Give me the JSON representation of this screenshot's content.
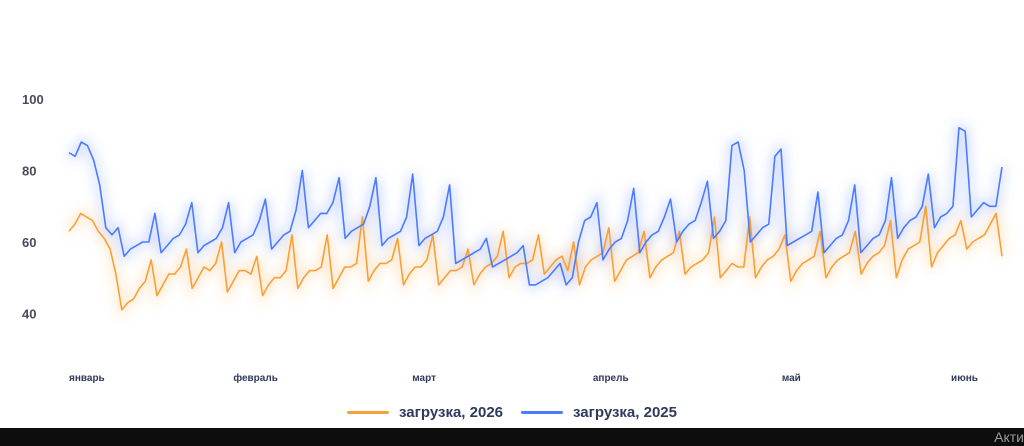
{
  "chart_data": {
    "type": "line",
    "y_ticks": [
      40,
      60,
      80,
      100
    ],
    "ylim": [
      32,
      102
    ],
    "x_month_labels": [
      "январь",
      "февраль",
      "март",
      "апрель",
      "май",
      "июнь"
    ],
    "x_month_label_days": [
      0,
      31,
      59,
      90,
      120,
      151
    ],
    "x_day_range": [
      0,
      155
    ],
    "series": [
      {
        "name": "загрузка, 2026",
        "color": "#f7a03a",
        "values": [
          63,
          65,
          68,
          67,
          66,
          63,
          61,
          58,
          51,
          41,
          43,
          44,
          47,
          49,
          55,
          45,
          48,
          51,
          51,
          53,
          58,
          47,
          50,
          53,
          52,
          54,
          60,
          46,
          49,
          52,
          52,
          51,
          56,
          45,
          48,
          50,
          50,
          52,
          62,
          47,
          50,
          52,
          52,
          53,
          62,
          47,
          50,
          53,
          53,
          54,
          67,
          49,
          52,
          54,
          54,
          55,
          61,
          48,
          51,
          53,
          53,
          55,
          62,
          48,
          50,
          52,
          52,
          53,
          58,
          48,
          51,
          53,
          54,
          56,
          63,
          50,
          53,
          54,
          54,
          55,
          62,
          51,
          53,
          55,
          56,
          52,
          60,
          48,
          53,
          55,
          56,
          57,
          64,
          49,
          52,
          55,
          56,
          57,
          63,
          50,
          53,
          55,
          56,
          57,
          63,
          51,
          53,
          54,
          55,
          57,
          67,
          50,
          52,
          54,
          53,
          53,
          67,
          50,
          53,
          55,
          56,
          58,
          62,
          49,
          52,
          54,
          55,
          56,
          63,
          50,
          53,
          55,
          56,
          57,
          63,
          51,
          54,
          56,
          57,
          59,
          66,
          50,
          55,
          58,
          59,
          60,
          70,
          53,
          57,
          59,
          61,
          62,
          66,
          58,
          60,
          61,
          62,
          65,
          68,
          56
        ]
      },
      {
        "name": "загрузка, 2025",
        "color": "#4d7bff",
        "values": [
          85,
          84,
          88,
          87,
          83,
          76,
          64,
          62,
          64,
          56,
          58,
          59,
          60,
          60,
          68,
          57,
          59,
          61,
          62,
          65,
          71,
          57,
          59,
          60,
          61,
          64,
          71,
          57,
          60,
          61,
          62,
          66,
          72,
          58,
          60,
          62,
          63,
          69,
          80,
          64,
          66,
          68,
          68,
          71,
          78,
          61,
          63,
          64,
          65,
          70,
          78,
          59,
          61,
          62,
          63,
          67,
          79,
          59,
          61,
          62,
          63,
          67,
          76,
          54,
          55,
          56,
          57,
          58,
          61,
          53,
          54,
          55,
          56,
          57,
          59,
          48,
          48,
          49,
          50,
          52,
          54,
          48,
          50,
          60,
          66,
          67,
          71,
          55,
          58,
          60,
          61,
          66,
          75,
          57,
          60,
          62,
          63,
          67,
          72,
          60,
          63,
          65,
          66,
          71,
          77,
          61,
          63,
          66,
          87,
          88,
          80,
          60,
          62,
          64,
          65,
          84,
          86,
          59,
          60,
          61,
          62,
          63,
          74,
          57,
          59,
          61,
          62,
          66,
          76,
          57,
          59,
          61,
          62,
          66,
          78,
          61,
          64,
          66,
          67,
          70,
          79,
          64,
          67,
          68,
          70,
          92,
          91,
          67,
          69,
          71,
          70,
          70,
          81
        ]
      }
    ],
    "legend_position": "bottom-center",
    "grid": false
  },
  "watermark": "Акти"
}
